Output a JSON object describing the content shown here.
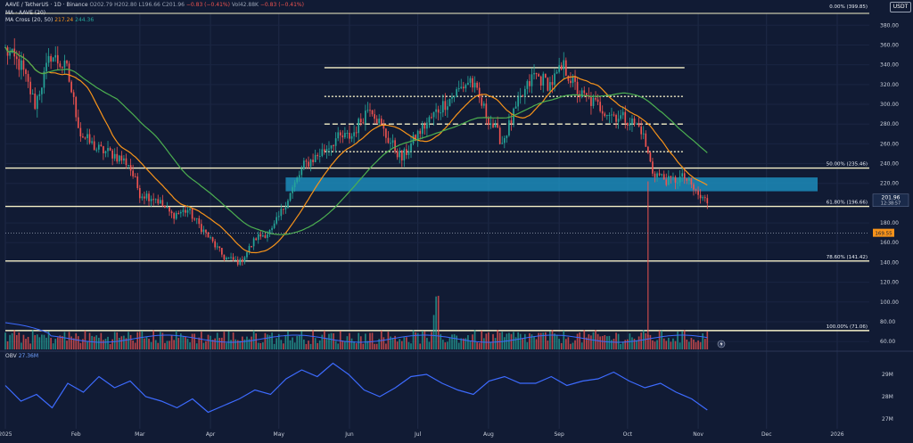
{
  "header": {
    "symbol": "AAVE / TetherUS · 1D · Binance",
    "open": "O202.79",
    "high": "H202.80",
    "low": "L196.66",
    "close": "C201.96",
    "change": "−0.83 (−0.41%)",
    "volume": "Vol42.88K",
    "volume_change": "−0.83 (−0.41%)",
    "ma_label": "MA · AAVE (20)",
    "ma_cross_label": "MA Cross (20, 50)",
    "ma_cross_fast": "217.24",
    "ma_cross_slow": "244.36",
    "obv_label": "OBV",
    "obv_value": "27.36M"
  },
  "currency": "USDT",
  "colors": {
    "background": "#111b34",
    "up_candle": "#26a69a",
    "down_candle": "#ef5350",
    "ma_fast": "#f7931a",
    "ma_slow": "#4caf50",
    "obv": "#3d6bff",
    "level_line": "#f5f0c8",
    "zone": "#1d9bcc",
    "price_label": "#f7931a"
  },
  "chart_data": [
    {
      "type": "candlestick",
      "x_axis": {
        "type": "date",
        "ticks": [
          "2025",
          "Feb",
          "Mar",
          "Apr",
          "May",
          "Jun",
          "Jul",
          "Aug",
          "Sep",
          "Oct",
          "Nov",
          "Dec",
          "2026"
        ]
      },
      "y_axis": {
        "ticks": [
          60,
          80,
          100,
          120,
          140,
          160,
          180,
          200,
          220,
          240,
          260,
          280,
          300,
          320,
          340,
          360,
          380
        ],
        "range": [
          52,
          392
        ]
      },
      "current_price": 201.96,
      "countdown": "12:38:57",
      "dotted_price_level": 169.55,
      "moving_averages": [
        {
          "label": "MA 20",
          "color": "#f7931a"
        },
        {
          "label": "MA 50",
          "color": "#4caf50"
        }
      ],
      "close_path": [
        [
          "2025-01-01",
          355
        ],
        [
          "2025-01-08",
          338
        ],
        [
          "2025-01-14",
          300
        ],
        [
          "2025-01-21",
          350
        ],
        [
          "2025-01-28",
          335
        ],
        [
          "2025-02-03",
          270
        ],
        [
          "2025-02-10",
          255
        ],
        [
          "2025-02-17",
          250
        ],
        [
          "2025-02-24",
          240
        ],
        [
          "2025-03-01",
          210
        ],
        [
          "2025-03-08",
          205
        ],
        [
          "2025-03-15",
          188
        ],
        [
          "2025-03-22",
          193
        ],
        [
          "2025-03-29",
          172
        ],
        [
          "2025-04-07",
          145
        ],
        [
          "2025-04-14",
          140
        ],
        [
          "2025-04-21",
          165
        ],
        [
          "2025-04-28",
          172
        ],
        [
          "2025-05-05",
          205
        ],
        [
          "2025-05-12",
          238
        ],
        [
          "2025-05-19",
          250
        ],
        [
          "2025-05-26",
          265
        ],
        [
          "2025-06-02",
          268
        ],
        [
          "2025-06-10",
          300
        ],
        [
          "2025-06-17",
          268
        ],
        [
          "2025-06-24",
          245
        ],
        [
          "2025-07-01",
          270
        ],
        [
          "2025-07-10",
          295
        ],
        [
          "2025-07-17",
          310
        ],
        [
          "2025-07-24",
          325
        ],
        [
          "2025-07-31",
          290
        ],
        [
          "2025-08-07",
          262
        ],
        [
          "2025-08-14",
          300
        ],
        [
          "2025-08-21",
          330
        ],
        [
          "2025-08-28",
          320
        ],
        [
          "2025-09-03",
          338
        ],
        [
          "2025-09-10",
          310
        ],
        [
          "2025-09-17",
          300
        ],
        [
          "2025-09-24",
          290
        ],
        [
          "2025-10-01",
          285
        ],
        [
          "2025-10-07",
          275
        ],
        [
          "2025-10-12",
          232
        ],
        [
          "2025-10-19",
          222
        ],
        [
          "2025-10-26",
          226
        ],
        [
          "2025-11-02",
          205
        ],
        [
          "2025-11-05",
          201.96
        ]
      ],
      "horizontal_levels": [
        {
          "value": 337,
          "style": "solid"
        },
        {
          "value": 308,
          "style": "dotted"
        },
        {
          "value": 280,
          "style": "dashed"
        },
        {
          "value": 252,
          "style": "dotted"
        },
        {
          "value": 235.46,
          "style": "solid",
          "label": "50.00% (235.46)"
        },
        {
          "value": 196.66,
          "style": "solid",
          "label": "61.80% (196.66)"
        },
        {
          "value": 141.42,
          "style": "solid",
          "label": "78.60% (141.42)"
        },
        {
          "value": 71.06,
          "style": "solid",
          "label": "100.00% (71.06)"
        }
      ],
      "top_label": "0.00% (399.85)",
      "zone": {
        "low": 212,
        "high": 226
      }
    },
    {
      "type": "line",
      "name": "OBV",
      "y_axis": {
        "ticks": [
          "29M",
          "28M",
          "27M"
        ],
        "range": [
          26.8,
          29.8
        ]
      },
      "values_millions": [
        28.5,
        27.8,
        28.1,
        27.5,
        28.6,
        28.2,
        28.9,
        28.4,
        28.7,
        28.0,
        27.8,
        27.5,
        27.9,
        27.3,
        27.6,
        27.9,
        28.3,
        28.1,
        28.8,
        29.2,
        28.9,
        29.5,
        29.0,
        28.3,
        28.0,
        28.4,
        28.9,
        29.0,
        28.6,
        28.3,
        28.1,
        28.7,
        28.9,
        28.6,
        28.6,
        28.9,
        28.5,
        28.7,
        28.8,
        29.1,
        28.7,
        28.4,
        28.6,
        28.2,
        27.9,
        27.4
      ]
    }
  ]
}
